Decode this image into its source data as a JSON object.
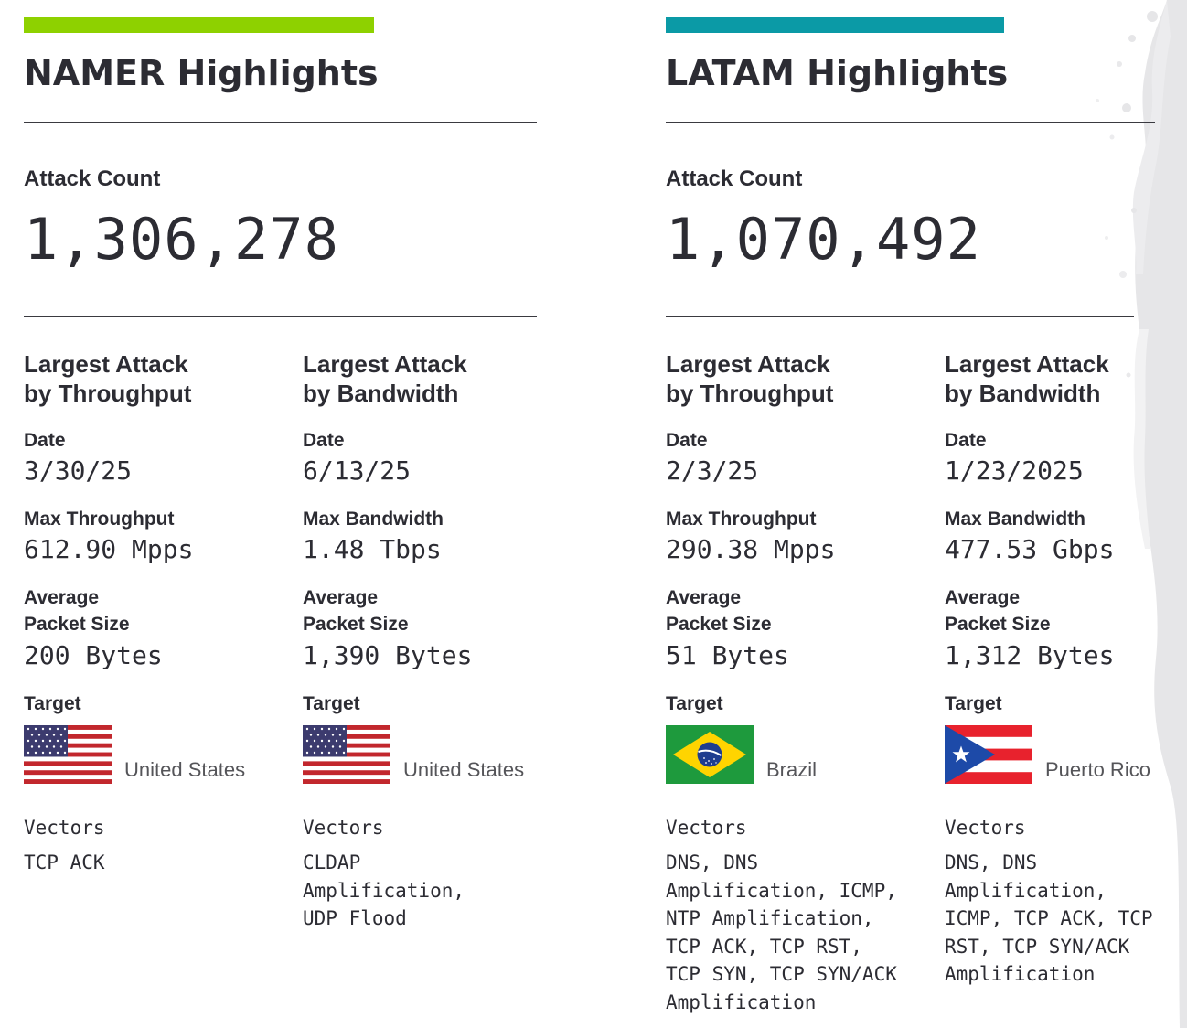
{
  "colors": {
    "namer_accent": "#8ed100",
    "latam_accent": "#0b9aa6",
    "text": "#2c2c33"
  },
  "regions": [
    {
      "title": "NAMER Highlights",
      "count_label": "Attack Count",
      "count": "1,306,278",
      "columns": [
        {
          "title_line1": "Largest Attack",
          "title_line2": "by Throughput",
          "date_label": "Date",
          "date": "3/30/25",
          "max_label": "Max Throughput",
          "max_value": "612.90 Mpps",
          "avg_label_line1": "Average",
          "avg_label_line2": "Packet Size",
          "avg_value": "200 Bytes",
          "target_label": "Target",
          "target_flag_icon": "us-flag-icon",
          "target": "United States",
          "vectors_label": "Vectors",
          "vector_lines": [
            "TCP ACK"
          ]
        },
        {
          "title_line1": "Largest Attack",
          "title_line2": "by Bandwidth",
          "date_label": "Date",
          "date": "6/13/25",
          "max_label": "Max Bandwidth",
          "max_value": "1.48 Tbps",
          "avg_label_line1": "Average",
          "avg_label_line2": "Packet Size",
          "avg_value": "1,390 Bytes",
          "target_label": "Target",
          "target_flag_icon": "us-flag-icon",
          "target": "United States",
          "vectors_label": "Vectors",
          "vector_lines": [
            "CLDAP",
            "Amplification,",
            "UDP Flood"
          ]
        }
      ]
    },
    {
      "title": "LATAM Highlights",
      "count_label": "Attack Count",
      "count": "1,070,492",
      "columns": [
        {
          "title_line1": "Largest Attack",
          "title_line2": "by Throughput",
          "date_label": "Date",
          "date": "2/3/25",
          "max_label": "Max Throughput",
          "max_value": "290.38 Mpps",
          "avg_label_line1": "Average",
          "avg_label_line2": "Packet Size",
          "avg_value": "51 Bytes",
          "target_label": "Target",
          "target_flag_icon": "brazil-flag-icon",
          "target": "Brazil",
          "vectors_label": "Vectors",
          "vector_lines": [
            "DNS, DNS",
            "Amplification, ICMP,",
            "NTP Amplification,",
            "TCP ACK, TCP RST,",
            "TCP SYN, TCP SYN/ACK",
            "Amplification"
          ]
        },
        {
          "title_line1": "Largest Attack",
          "title_line2": "by Bandwidth",
          "date_label": "Date",
          "date": "1/23/2025",
          "max_label": "Max Bandwidth",
          "max_value": "477.53 Gbps",
          "avg_label_line1": "Average",
          "avg_label_line2": "Packet Size",
          "avg_value": "1,312 Bytes",
          "target_label": "Target",
          "target_flag_icon": "puerto-rico-flag-icon",
          "target": "Puerto Rico",
          "vectors_label": "Vectors",
          "vector_lines": [
            "DNS, DNS",
            "Amplification,",
            "ICMP, TCP ACK, TCP",
            "RST, TCP SYN/ACK",
            "Amplification"
          ]
        }
      ]
    }
  ]
}
